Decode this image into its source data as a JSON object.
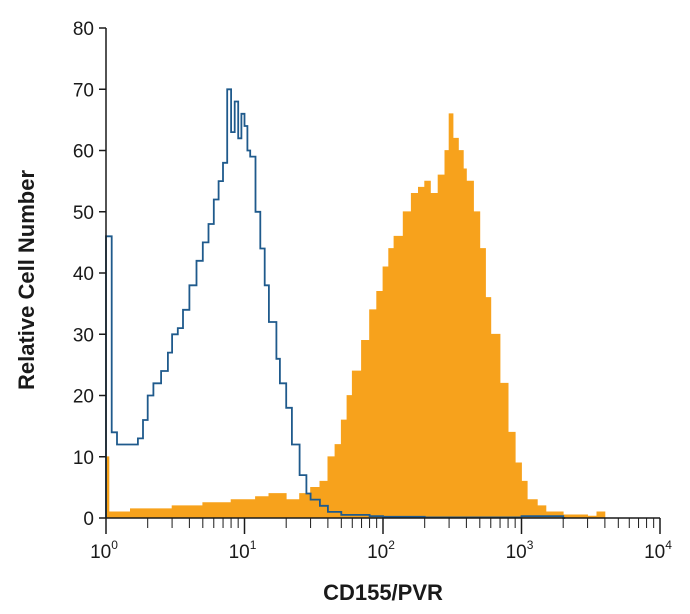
{
  "chart_data": {
    "type": "histogram",
    "xlabel": "CD155/PVR",
    "ylabel": "Relative Cell Number",
    "x_scale": "log",
    "xlim": [
      1,
      10000
    ],
    "ylim": [
      0,
      80
    ],
    "grid": false,
    "x_ticks": [
      {
        "base": "10",
        "exp": "0",
        "value": 1
      },
      {
        "base": "10",
        "exp": "1",
        "value": 10
      },
      {
        "base": "10",
        "exp": "2",
        "value": 100
      },
      {
        "base": "10",
        "exp": "3",
        "value": 1000
      },
      {
        "base": "10",
        "exp": "4",
        "value": 10000
      }
    ],
    "y_ticks": [
      "0",
      "10",
      "20",
      "30",
      "40",
      "50",
      "60",
      "70",
      "80"
    ],
    "series": [
      {
        "style": "outline",
        "color": "#1f5a8c",
        "x": [
          1,
          1.1,
          1.2,
          1.3,
          1.5,
          1.7,
          1.85,
          2,
          2.2,
          2.5,
          2.8,
          3,
          3.3,
          3.6,
          4,
          4.5,
          5,
          5.5,
          6,
          6.5,
          7,
          7.5,
          8,
          8.5,
          9,
          9.5,
          10,
          10.5,
          11,
          12,
          13,
          14,
          15,
          17,
          18,
          20,
          22,
          25,
          28,
          30,
          35,
          40,
          50,
          60,
          80,
          100,
          200,
          500,
          1000,
          2000
        ],
        "y": [
          46,
          14,
          12,
          12,
          12,
          13,
          16,
          20,
          22,
          24,
          27,
          30,
          31,
          34,
          38,
          42,
          45,
          48,
          52,
          55,
          58,
          70,
          63,
          68,
          62,
          66,
          64,
          60,
          59,
          50,
          44,
          38,
          32,
          26,
          22,
          18,
          12,
          7,
          4,
          3,
          2,
          1,
          0.5,
          0.5,
          0.3,
          0.2,
          0.1,
          0.1,
          0.3,
          0
        ]
      },
      {
        "style": "filled",
        "color": "#f7a21c",
        "x": [
          1,
          1.05,
          1.5,
          2,
          3,
          4,
          5,
          6,
          8,
          10,
          12,
          15,
          18,
          20,
          25,
          30,
          35,
          40,
          45,
          50,
          55,
          60,
          70,
          80,
          90,
          100,
          110,
          120,
          140,
          160,
          180,
          200,
          220,
          250,
          280,
          300,
          320,
          350,
          380,
          400,
          450,
          500,
          550,
          600,
          700,
          800,
          900,
          1000,
          1100,
          1300,
          1500,
          2000,
          3000,
          3500,
          4000
        ],
        "y": [
          10,
          1,
          1.5,
          1.5,
          2,
          2,
          2.5,
          2.5,
          3,
          3,
          3.5,
          4,
          4,
          3,
          4,
          5,
          6,
          10,
          12,
          16,
          20,
          24,
          29,
          34,
          37,
          41,
          44,
          46,
          50,
          53,
          54,
          55,
          53,
          56,
          60,
          66,
          62,
          60,
          57,
          55,
          50,
          44,
          36,
          30,
          22,
          14,
          9,
          6,
          3,
          2,
          1,
          0.5,
          0.3,
          1,
          0
        ]
      }
    ]
  }
}
